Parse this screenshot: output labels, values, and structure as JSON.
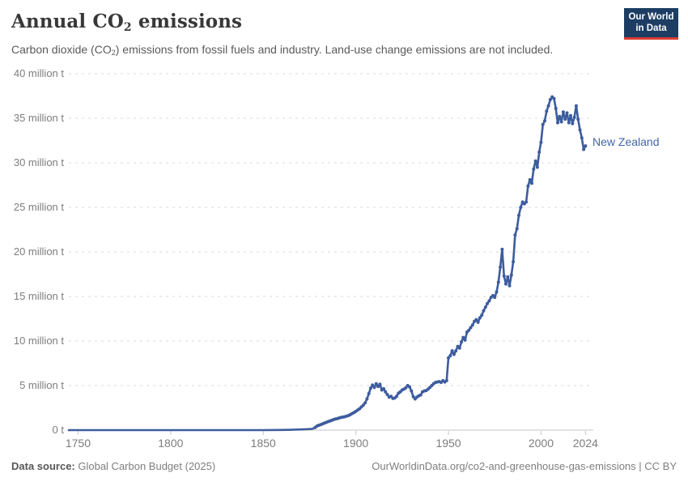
{
  "header": {
    "title_pre": "Annual CO",
    "title_sub": "2",
    "title_post": " emissions",
    "subtitle_pre": "Carbon dioxide (CO",
    "subtitle_sub": "2",
    "subtitle_post": ") emissions from fossil fuels and industry. Land-use change emissions are not included.",
    "logo_line1": "Our World",
    "logo_line2": "in Data"
  },
  "footer": {
    "source_label": "Data source:",
    "source_value": " Global Carbon Budget (2025)",
    "citation": "OurWorldinData.org/co2-and-greenhouse-gas-emissions | CC BY"
  },
  "colors": {
    "line": "#3d5c9e",
    "entity_label": "#4166a5",
    "grid": "#dadada",
    "axis": "#c6c6c6",
    "tick_text": "#7d7d7d"
  },
  "chart_data": {
    "type": "line",
    "title": "Annual CO₂ emissions",
    "entity": "New Zealand",
    "unit": "million tonnes of CO₂",
    "x_domain": [
      1745,
      2026
    ],
    "y_domain": [
      0,
      40
    ],
    "grid": true,
    "legend_position": "end-of-line-label",
    "x_ticks": [
      1750,
      1800,
      1850,
      1900,
      1950,
      2000,
      2024
    ],
    "y_ticks": [
      {
        "value": 0,
        "label": "0 t"
      },
      {
        "value": 5,
        "label": "5 million t"
      },
      {
        "value": 10,
        "label": "10 million t"
      },
      {
        "value": 15,
        "label": "15 million t"
      },
      {
        "value": 20,
        "label": "20 million t"
      },
      {
        "value": 25,
        "label": "25 million t"
      },
      {
        "value": 30,
        "label": "30 million t"
      },
      {
        "value": 35,
        "label": "35 million t"
      },
      {
        "value": 40,
        "label": "40 million t"
      }
    ],
    "series": [
      {
        "name": "New Zealand",
        "points": [
          [
            1745,
            0
          ],
          [
            1760,
            0
          ],
          [
            1780,
            0
          ],
          [
            1800,
            0
          ],
          [
            1820,
            0
          ],
          [
            1840,
            0
          ],
          [
            1850,
            0
          ],
          [
            1860,
            0.02
          ],
          [
            1865,
            0.04
          ],
          [
            1870,
            0.07
          ],
          [
            1873,
            0.1
          ],
          [
            1876,
            0.13
          ],
          [
            1877,
            0.18
          ],
          [
            1878,
            0.3
          ],
          [
            1879,
            0.45
          ],
          [
            1880,
            0.55
          ],
          [
            1881,
            0.62
          ],
          [
            1882,
            0.7
          ],
          [
            1883,
            0.78
          ],
          [
            1884,
            0.86
          ],
          [
            1885,
            0.95
          ],
          [
            1886,
            1.03
          ],
          [
            1887,
            1.1
          ],
          [
            1888,
            1.18
          ],
          [
            1889,
            1.25
          ],
          [
            1890,
            1.3
          ],
          [
            1891,
            1.36
          ],
          [
            1892,
            1.42
          ],
          [
            1893,
            1.46
          ],
          [
            1894,
            1.5
          ],
          [
            1895,
            1.56
          ],
          [
            1896,
            1.64
          ],
          [
            1897,
            1.74
          ],
          [
            1898,
            1.86
          ],
          [
            1899,
            1.98
          ],
          [
            1900,
            2.1
          ],
          [
            1901,
            2.25
          ],
          [
            1902,
            2.4
          ],
          [
            1903,
            2.6
          ],
          [
            1904,
            2.8
          ],
          [
            1905,
            3.05
          ],
          [
            1906,
            3.5
          ],
          [
            1907,
            4.1
          ],
          [
            1908,
            4.7
          ],
          [
            1909,
            5.05
          ],
          [
            1910,
            4.8
          ],
          [
            1911,
            5.2
          ],
          [
            1912,
            4.9
          ],
          [
            1913,
            5.15
          ],
          [
            1914,
            4.5
          ],
          [
            1915,
            4.65
          ],
          [
            1916,
            4.3
          ],
          [
            1917,
            4.0
          ],
          [
            1918,
            3.7
          ],
          [
            1919,
            3.8
          ],
          [
            1920,
            3.55
          ],
          [
            1921,
            3.6
          ],
          [
            1922,
            3.8
          ],
          [
            1923,
            4.15
          ],
          [
            1924,
            4.3
          ],
          [
            1925,
            4.5
          ],
          [
            1926,
            4.6
          ],
          [
            1927,
            4.75
          ],
          [
            1928,
            5.0
          ],
          [
            1929,
            4.85
          ],
          [
            1930,
            4.4
          ],
          [
            1931,
            3.75
          ],
          [
            1932,
            3.5
          ],
          [
            1933,
            3.7
          ],
          [
            1934,
            3.85
          ],
          [
            1935,
            3.95
          ],
          [
            1936,
            4.3
          ],
          [
            1937,
            4.4
          ],
          [
            1938,
            4.45
          ],
          [
            1939,
            4.6
          ],
          [
            1940,
            4.8
          ],
          [
            1941,
            5.0
          ],
          [
            1942,
            5.2
          ],
          [
            1943,
            5.35
          ],
          [
            1944,
            5.4
          ],
          [
            1945,
            5.45
          ],
          [
            1946,
            5.35
          ],
          [
            1947,
            5.55
          ],
          [
            1948,
            5.4
          ],
          [
            1949,
            5.55
          ],
          [
            1950,
            8.1
          ],
          [
            1951,
            8.35
          ],
          [
            1952,
            8.9
          ],
          [
            1953,
            8.5
          ],
          [
            1954,
            8.9
          ],
          [
            1955,
            9.4
          ],
          [
            1956,
            9.2
          ],
          [
            1957,
            9.9
          ],
          [
            1958,
            10.4
          ],
          [
            1959,
            10.1
          ],
          [
            1960,
            11.0
          ],
          [
            1961,
            11.2
          ],
          [
            1962,
            11.5
          ],
          [
            1963,
            11.8
          ],
          [
            1964,
            12.2
          ],
          [
            1965,
            12.4
          ],
          [
            1966,
            12.1
          ],
          [
            1967,
            12.6
          ],
          [
            1968,
            12.9
          ],
          [
            1969,
            13.4
          ],
          [
            1970,
            13.8
          ],
          [
            1971,
            14.2
          ],
          [
            1972,
            14.5
          ],
          [
            1973,
            14.9
          ],
          [
            1974,
            15.1
          ],
          [
            1975,
            14.9
          ],
          [
            1976,
            15.5
          ],
          [
            1977,
            16.6
          ],
          [
            1978,
            18.3
          ],
          [
            1979,
            20.3
          ],
          [
            1980,
            17.3
          ],
          [
            1981,
            16.4
          ],
          [
            1982,
            17.2
          ],
          [
            1983,
            16.2
          ],
          [
            1984,
            17.4
          ],
          [
            1985,
            18.9
          ],
          [
            1986,
            21.9
          ],
          [
            1987,
            22.6
          ],
          [
            1988,
            24.1
          ],
          [
            1989,
            25.0
          ],
          [
            1990,
            25.6
          ],
          [
            1991,
            25.4
          ],
          [
            1992,
            25.6
          ],
          [
            1993,
            27.4
          ],
          [
            1994,
            28.1
          ],
          [
            1995,
            27.7
          ],
          [
            1996,
            29.3
          ],
          [
            1997,
            30.2
          ],
          [
            1998,
            29.5
          ],
          [
            1999,
            31.2
          ],
          [
            2000,
            32.3
          ],
          [
            2001,
            34.3
          ],
          [
            2002,
            34.7
          ],
          [
            2003,
            35.8
          ],
          [
            2004,
            36.4
          ],
          [
            2005,
            37.1
          ],
          [
            2006,
            37.4
          ],
          [
            2007,
            37.2
          ],
          [
            2008,
            36.1
          ],
          [
            2009,
            34.5
          ],
          [
            2010,
            35.2
          ],
          [
            2011,
            34.6
          ],
          [
            2012,
            35.7
          ],
          [
            2013,
            34.9
          ],
          [
            2014,
            35.6
          ],
          [
            2015,
            34.5
          ],
          [
            2016,
            35.3
          ],
          [
            2017,
            34.4
          ],
          [
            2018,
            35.1
          ],
          [
            2019,
            36.4
          ],
          [
            2020,
            34.9
          ],
          [
            2021,
            33.7
          ],
          [
            2022,
            32.8
          ],
          [
            2023,
            31.5
          ],
          [
            2024,
            31.9
          ]
        ]
      }
    ]
  }
}
